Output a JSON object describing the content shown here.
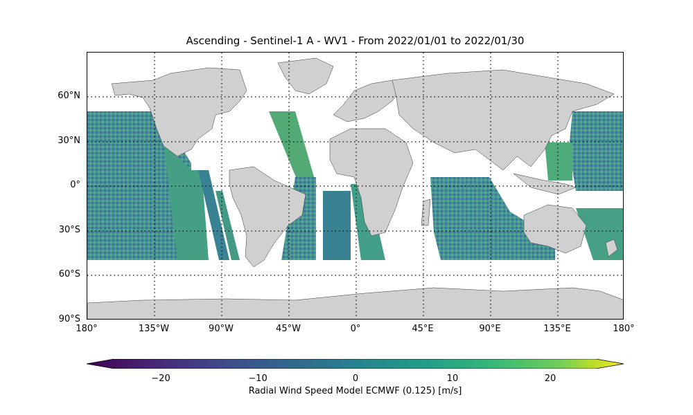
{
  "title": "Ascending - Sentinel-1 A - WV1 - From 2022/01/01 to 2022/01/30",
  "map": {
    "lat_ticks": [
      "60°N",
      "30°N",
      "0°",
      "30°S",
      "60°S",
      "90°S"
    ],
    "lon_ticks": [
      "180°",
      "135°W",
      "90°W",
      "45°W",
      "0°",
      "45°E",
      "90°E",
      "135°E",
      "180°"
    ],
    "land_color": "#d0d0d0",
    "grid": "dotted"
  },
  "colorbar": {
    "label": "Radial Wind Speed Model ECMWF (0.125) [m/s]",
    "ticks": [
      "−20",
      "−10",
      "0",
      "10",
      "20"
    ],
    "range": [
      -27.5,
      27.5
    ],
    "colormap": "viridis",
    "extend": "both"
  }
}
